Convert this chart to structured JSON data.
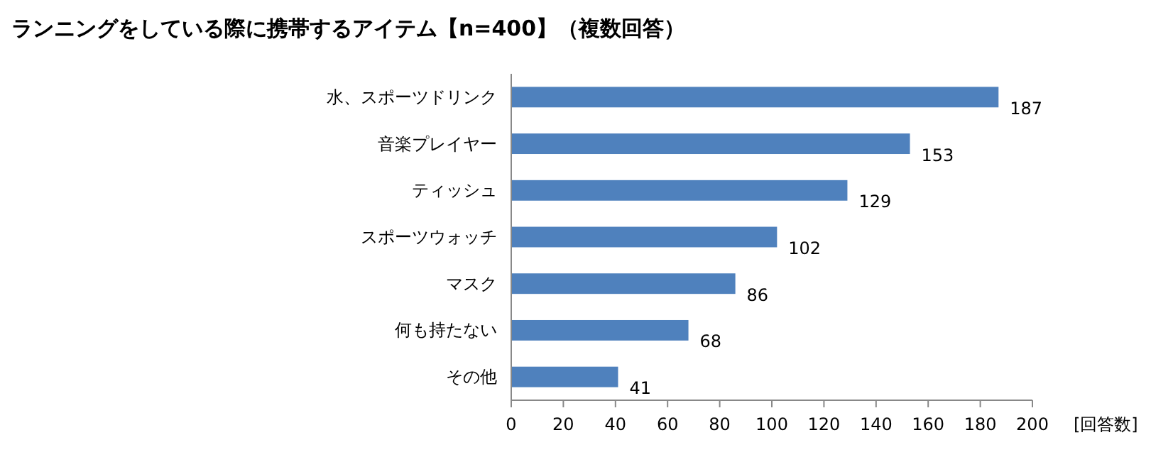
{
  "chart_data": {
    "type": "bar",
    "orientation": "horizontal",
    "title": "ランニングをしている際に携帯するアイテム【n=400】（複数回答）",
    "xlabel": "[回答数]",
    "categories": [
      "水、スポーツドリンク",
      "音楽プレイヤー",
      "ティッシュ",
      "スポーツウォッチ",
      "マスク",
      "何も持たない",
      "その他"
    ],
    "values": [
      187,
      153,
      129,
      102,
      86,
      68,
      41
    ],
    "color": "#4f81bd",
    "xlim": [
      0,
      200
    ],
    "xticks": [
      0,
      20,
      40,
      60,
      80,
      100,
      120,
      140,
      160,
      180,
      200
    ],
    "data_labels": true,
    "grid": false
  }
}
